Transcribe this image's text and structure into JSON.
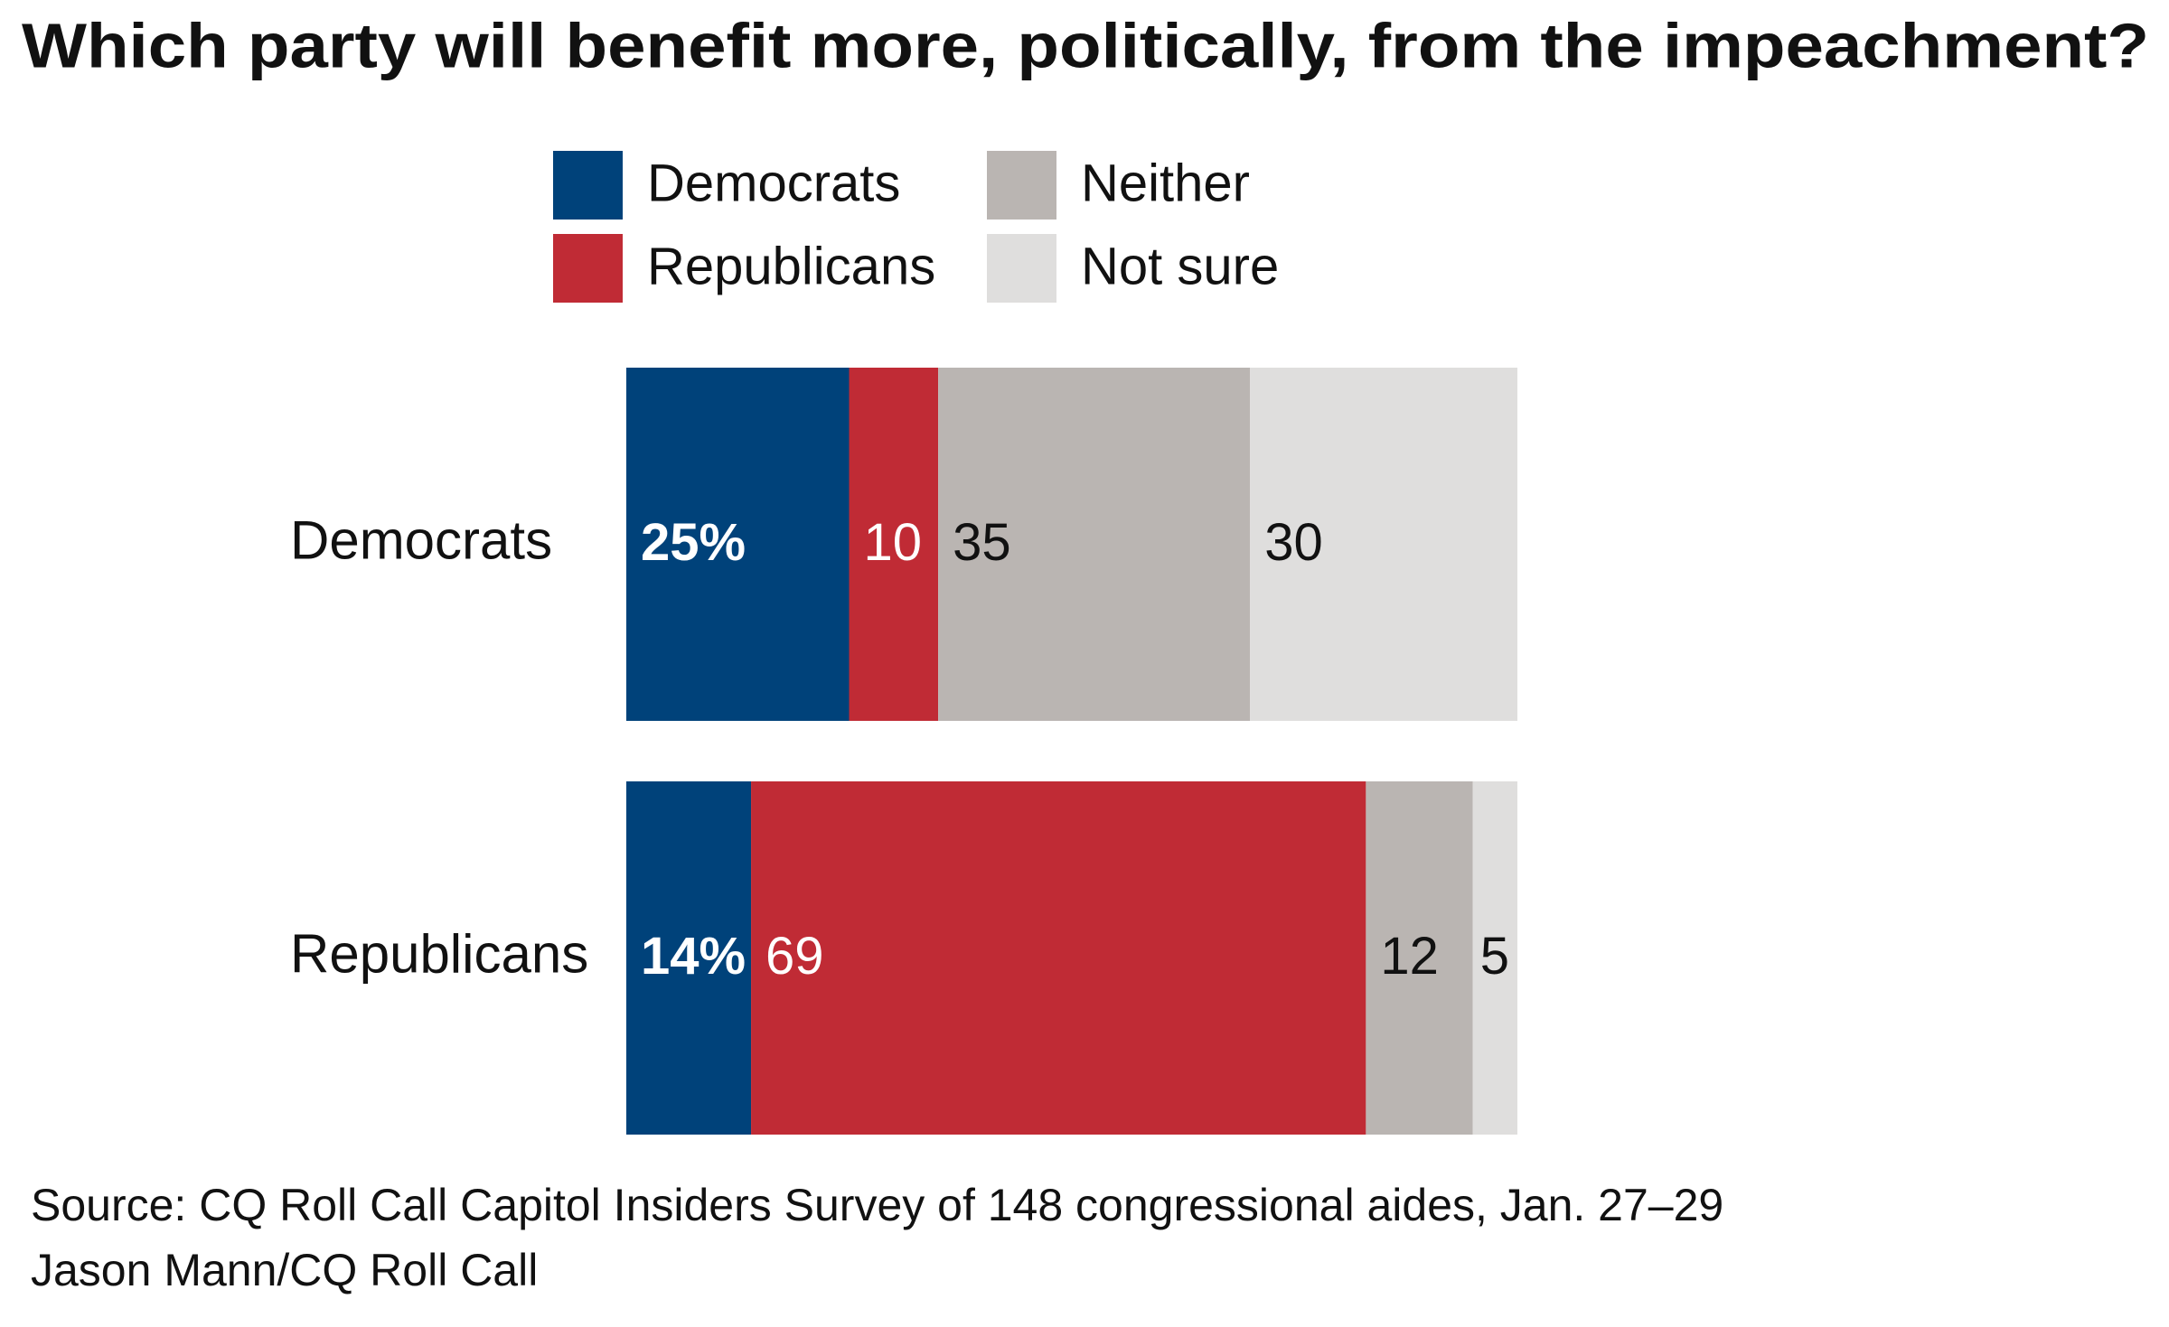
{
  "chart_data": {
    "type": "bar",
    "orientation": "horizontal",
    "stacked": true,
    "title": "Which party will benefit more, politically, from the impeachment?",
    "categories": [
      "Democrats",
      "Republicans"
    ],
    "series": [
      {
        "name": "Democrats",
        "color": "#00427a",
        "values": [
          25,
          14
        ],
        "value_labels": [
          "25%",
          "14%"
        ]
      },
      {
        "name": "Republicans",
        "color": "#c02b35",
        "values": [
          10,
          69
        ]
      },
      {
        "name": "Neither",
        "color": "#bab5b2",
        "values": [
          35,
          12
        ]
      },
      {
        "name": "Not sure",
        "color": "#dfdedd",
        "values": [
          30,
          5
        ]
      }
    ],
    "legend": "top",
    "source": "Source: CQ Roll Call Capitol Insiders Survey of 148 congressional aides, Jan. 27–29",
    "credit": "Jason Mann/CQ Roll Call"
  }
}
